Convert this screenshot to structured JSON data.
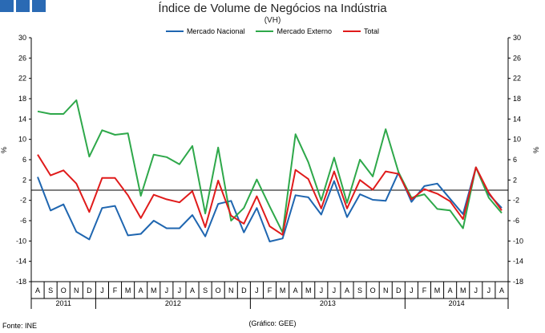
{
  "header": {
    "title": "Índice de Volume de Negócios na Indústria",
    "subtitle": "(VH)"
  },
  "footer": {
    "source": "Fonte: INE",
    "credit": "(Gráfico: GEE)"
  },
  "chart_data": {
    "type": "line",
    "title": "Índice de Volume de Negócios na Indústria",
    "subtitle": "(VH)",
    "ylabel": "%",
    "ylim": [
      -18,
      30
    ],
    "yticks": [
      30,
      26,
      22,
      18,
      14,
      10,
      6,
      2,
      -2,
      -6,
      -10,
      -14,
      -18
    ],
    "categories": [
      "A",
      "S",
      "O",
      "N",
      "D",
      "J",
      "F",
      "M",
      "A",
      "M",
      "J",
      "J",
      "A",
      "S",
      "O",
      "N",
      "D",
      "J",
      "F",
      "M",
      "A",
      "M",
      "J",
      "J",
      "A",
      "S",
      "O",
      "N",
      "D",
      "J",
      "F",
      "M",
      "A",
      "M",
      "J",
      "J",
      "A"
    ],
    "year_groups": [
      {
        "label": "2011",
        "start": 0,
        "count": 5
      },
      {
        "label": "2012",
        "start": 5,
        "count": 12
      },
      {
        "label": "2013",
        "start": 17,
        "count": 12
      },
      {
        "label": "2014",
        "start": 29,
        "count": 8
      }
    ],
    "series": [
      {
        "name": "Mercado Nacional",
        "color": "#1f66b0",
        "values": [
          2.6,
          -4.0,
          -2.8,
          -8.2,
          -9.7,
          -3.5,
          -3.1,
          -8.9,
          -8.6,
          -6.0,
          -7.5,
          -7.5,
          -4.9,
          -9.1,
          -2.7,
          -2.1,
          -8.3,
          -3.5,
          -10.1,
          -9.5,
          -1.0,
          -1.4,
          -4.8,
          1.8,
          -5.3,
          -0.8,
          -1.9,
          -2.1,
          3.5,
          -2.3,
          0.8,
          1.3,
          -1.7,
          -4.7,
          4.5,
          -0.8,
          -3.5
        ]
      },
      {
        "name": "Mercado Externo",
        "color": "#2ea84a",
        "values": [
          15.5,
          15.0,
          15.0,
          17.7,
          6.6,
          11.8,
          10.9,
          11.2,
          -1.1,
          7.0,
          6.5,
          5.1,
          8.7,
          -4.6,
          8.4,
          -6.0,
          -3.5,
          2.1,
          -3.2,
          -8.3,
          11.0,
          5.5,
          -2.0,
          6.4,
          -2.5,
          6.0,
          2.7,
          12.0,
          3.5,
          -1.5,
          -0.8,
          -3.7,
          -4.0,
          -7.5,
          4.5,
          -1.5,
          -4.5
        ]
      },
      {
        "name": "Total",
        "color": "#e01b1b",
        "values": [
          7.0,
          2.9,
          3.9,
          1.3,
          -4.3,
          2.4,
          2.4,
          -1.0,
          -5.5,
          -0.9,
          -1.8,
          -2.4,
          -0.2,
          -7.3,
          1.9,
          -5.0,
          -6.6,
          -1.2,
          -7.1,
          -8.8,
          4.0,
          2.2,
          -3.6,
          3.7,
          -3.6,
          2.0,
          0.1,
          3.7,
          3.2,
          -1.8,
          0.2,
          -0.7,
          -2.2,
          -5.7,
          4.5,
          -0.5,
          -4.0
        ]
      }
    ]
  }
}
